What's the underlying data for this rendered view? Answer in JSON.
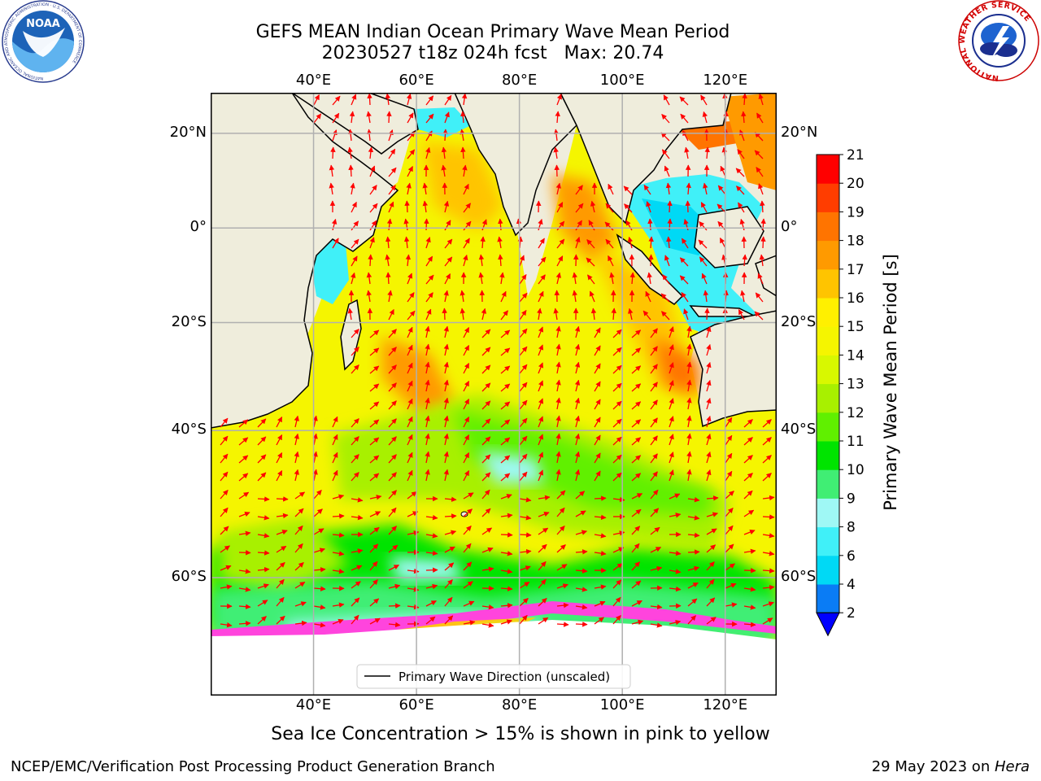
{
  "title": {
    "line1": "GEFS MEAN Indian Ocean Primary Wave Mean Period",
    "line2": "20230527 t18z 024h fcst   Max: 20.74"
  },
  "map": {
    "lon_ticks": [
      "40°E",
      "60°E",
      "80°E",
      "100°E",
      "120°E"
    ],
    "lon_values": [
      40,
      60,
      80,
      100,
      120
    ],
    "lat_ticks": [
      "20°N",
      "0°",
      "20°S",
      "40°S",
      "60°S"
    ],
    "lat_values": [
      20,
      0,
      -20,
      -40,
      -60
    ],
    "extent": {
      "lon": [
        20,
        130
      ],
      "lat": [
        -70,
        28
      ]
    },
    "legend": "Primary Wave Direction (unscaled)",
    "arrow_color": "#ff0000",
    "land_color": "#efeddc"
  },
  "colorbar": {
    "label": "Primary Wave Mean Period [s]",
    "ticks": [
      "2",
      "4",
      "6",
      "8",
      "9",
      "10",
      "11",
      "12",
      "13",
      "14",
      "15",
      "16",
      "17",
      "18",
      "19",
      "20",
      "21"
    ],
    "colors": [
      "#0a7cf5",
      "#00d9f5",
      "#40f0f8",
      "#9ff8f5",
      "#40ee74",
      "#00e400",
      "#60f000",
      "#a8f000",
      "#d8f800",
      "#f5f500",
      "#fff000",
      "#ffc400",
      "#ff9a00",
      "#ff7400",
      "#ff3d00",
      "#ff0000"
    ],
    "under_color": "#0000ff"
  },
  "caption": "Sea Ice Concentration > 15% is shown in pink to yellow",
  "footer": {
    "left": "NCEP/EMC/Verification Post Processing Product Generation Branch",
    "right_prefix": "29 May 2023 on ",
    "right_host": "Hera"
  },
  "logos": {
    "noaa": "NOAA",
    "noaa_ring": "NATIONAL OCEANIC AND ATMOSPHERIC ADMINISTRATION · U.S. DEPARTMENT OF COMMERCE",
    "nws_ring": "NATIONAL WEATHER SERVICE"
  }
}
